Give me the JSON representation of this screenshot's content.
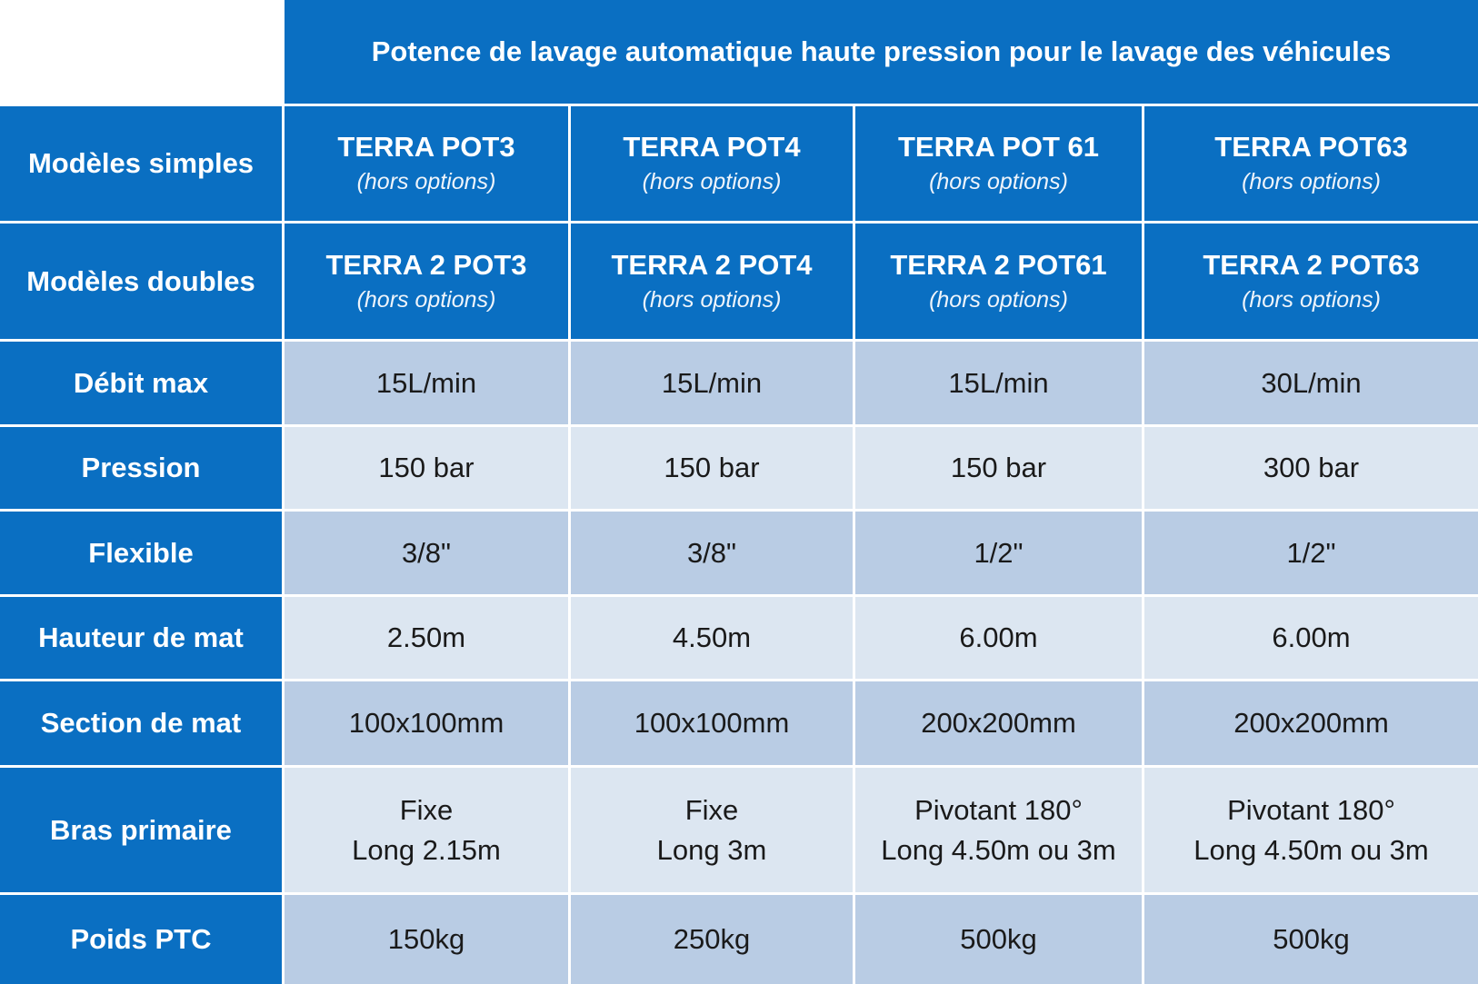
{
  "title": "Potence de lavage automatique haute pression pour le lavage des véhicules",
  "models": [
    {
      "simple": "TERRA POT3",
      "double": "TERRA 2 POT3"
    },
    {
      "simple": "TERRA POT4",
      "double": "TERRA 2 POT4"
    },
    {
      "simple": "TERRA POT 61",
      "double": "TERRA 2 POT61"
    },
    {
      "simple": "TERRA POT63",
      "double": "TERRA 2 POT63"
    }
  ],
  "note": "(hors options)",
  "row_labels": {
    "simples": "Modèles simples",
    "doubles": "Modèles doubles"
  },
  "rows": [
    {
      "label": "Débit max",
      "values": [
        "15L/min",
        "15L/min",
        "15L/min",
        "30L/min"
      ]
    },
    {
      "label": "Pression",
      "values": [
        "150 bar",
        "150 bar",
        "150 bar",
        "300 bar"
      ]
    },
    {
      "label": "Flexible",
      "values": [
        "3/8\"",
        "3/8\"",
        "1/2\"",
        "1/2\""
      ]
    },
    {
      "label": "Hauteur de mat",
      "values": [
        "2.50m",
        "4.50m",
        "6.00m",
        "6.00m"
      ]
    },
    {
      "label": "Section de mat",
      "values": [
        "100x100mm",
        "100x100mm",
        "200x200mm",
        "200x200mm"
      ]
    },
    {
      "label": "Bras primaire",
      "values": [
        [
          "Fixe",
          "Long 2.15m"
        ],
        [
          "Fixe",
          "Long 3m"
        ],
        [
          "Pivotant 180°",
          "Long 4.50m ou 3m"
        ],
        [
          "Pivotant 180°",
          "Long 4.50m ou 3m"
        ]
      ]
    },
    {
      "label": "Poids PTC",
      "values": [
        "150kg",
        "250kg",
        "500kg",
        "500kg"
      ]
    }
  ],
  "colors": {
    "header_blue": "#0a6fc2",
    "row_dark": "#b9cce4",
    "row_light": "#dce6f1"
  }
}
